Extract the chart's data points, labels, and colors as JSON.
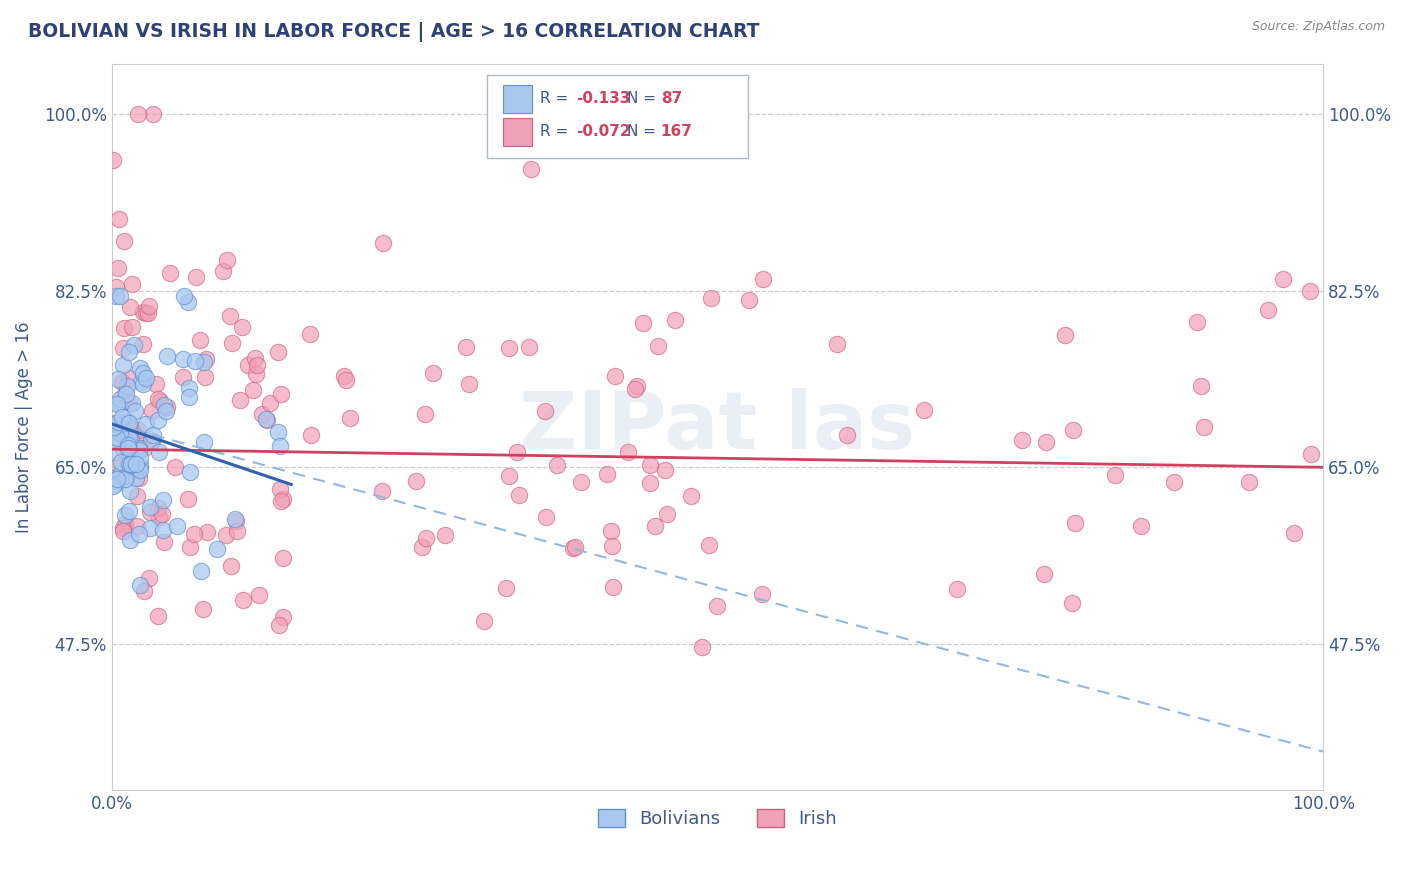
{
  "title": "BOLIVIAN VS IRISH IN LABOR FORCE | AGE > 16 CORRELATION CHART",
  "source_text": "Source: ZipAtlas.com",
  "ylabel": "In Labor Force | Age > 16",
  "xlim": [
    0.0,
    1.0
  ],
  "ylim": [
    0.33,
    1.05
  ],
  "yticks": [
    0.475,
    0.65,
    0.825,
    1.0
  ],
  "ytick_labels": [
    "47.5%",
    "65.0%",
    "82.5%",
    "100.0%"
  ],
  "xticks": [
    0.0,
    1.0
  ],
  "xtick_labels": [
    "0.0%",
    "100.0%"
  ],
  "title_color": "#2e4374",
  "axis_color": "#3d5a8a",
  "tick_color": "#3d5a8a",
  "grid_color": "#c8c8c8",
  "bolivian_color": "#a8c8f0",
  "irish_color": "#f0a0b8",
  "bolivian_edge_color": "#6090d0",
  "irish_edge_color": "#d06080",
  "trend_bolivian_color": "#3060b0",
  "trend_irish_color": "#d04060",
  "trend_dash_color": "#90b8e0",
  "watermark": "ZIPat las",
  "legend_R_bolivian": "-0.133",
  "legend_N_bolivian": "87",
  "legend_R_irish": "-0.072",
  "legend_N_irish": "167",
  "blue_trend_x0": 0.0,
  "blue_trend_y0": 0.693,
  "blue_trend_x1": 0.148,
  "blue_trend_y1": 0.633,
  "pink_trend_x0": 0.0,
  "pink_trend_y0": 0.668,
  "pink_trend_x1": 1.0,
  "pink_trend_y1": 0.65,
  "dash_trend_x0": 0.0,
  "dash_trend_y0": 0.693,
  "dash_trend_x1": 1.0,
  "dash_trend_y1": 0.368
}
